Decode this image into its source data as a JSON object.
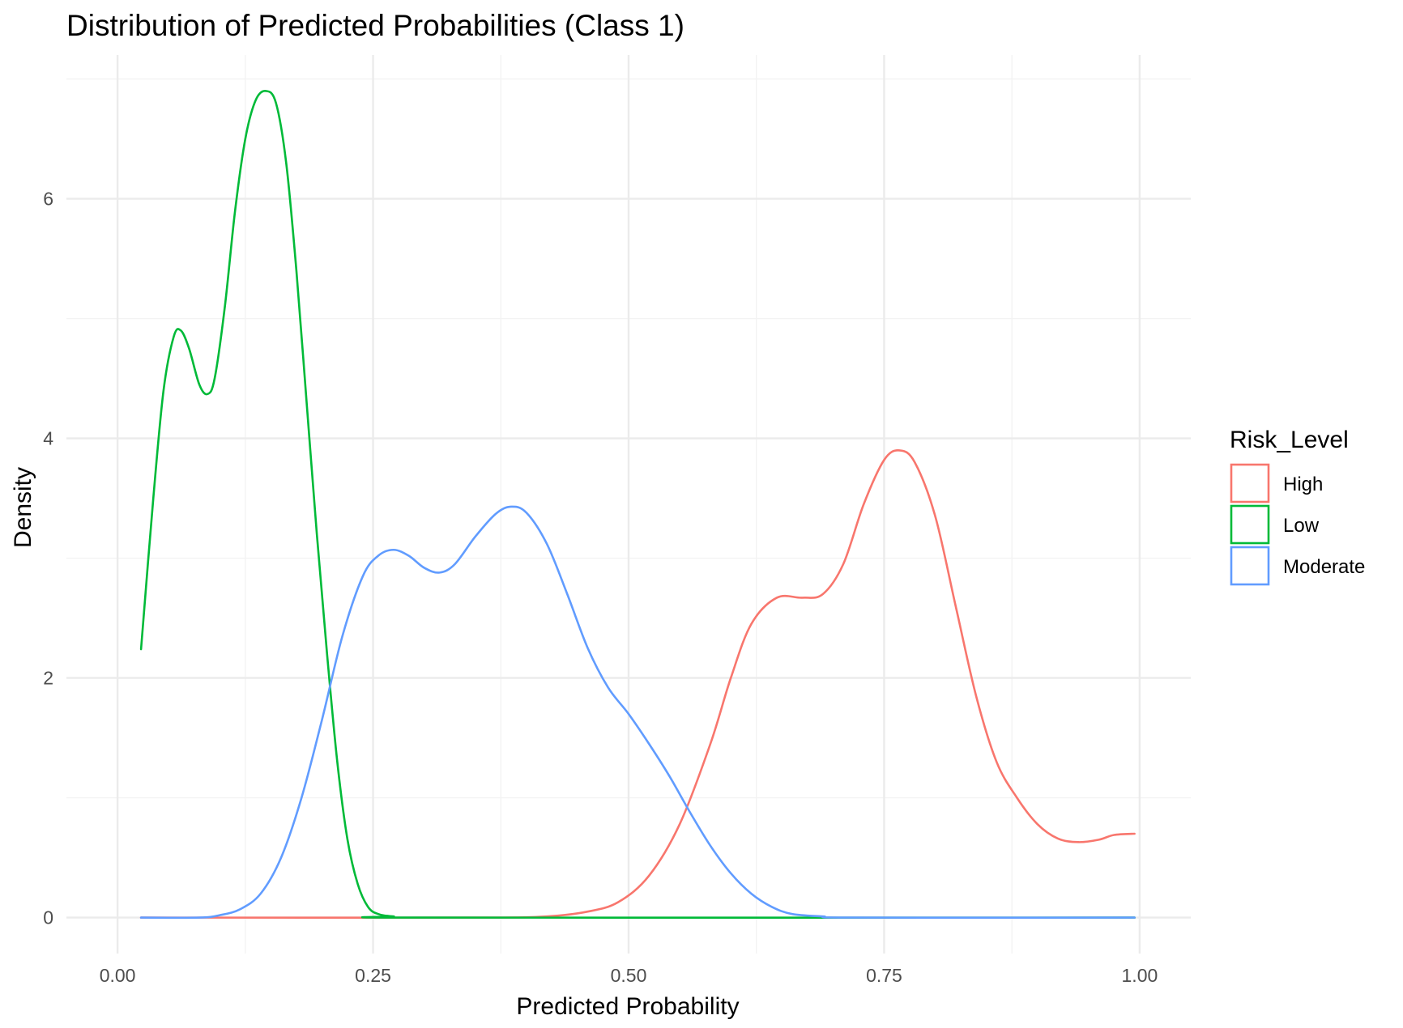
{
  "chart_data": {
    "type": "line",
    "subtype": "density",
    "title": "Distribution of Predicted Probabilities (Class 1)",
    "xlabel": "Predicted Probability",
    "ylabel": "Density",
    "xlim": [
      -0.05,
      1.05
    ],
    "ylim": [
      -0.3,
      7.2
    ],
    "x_ticks": [
      0,
      0.25,
      0.5,
      0.75,
      1.0
    ],
    "x_tick_labels": [
      "0.00",
      "0.25",
      "0.50",
      "0.75",
      "1.00"
    ],
    "y_ticks": [
      0,
      2,
      4,
      6
    ],
    "y_tick_labels": [
      "0",
      "2",
      "4",
      "6"
    ],
    "grid": true,
    "legend": {
      "title": "Risk_Level",
      "position": "right"
    },
    "series": [
      {
        "name": "High",
        "color": "#F8766D",
        "points": [
          [
            0.023,
            0.0
          ],
          [
            0.35,
            0.0
          ],
          [
            0.42,
            0.01
          ],
          [
            0.46,
            0.05
          ],
          [
            0.49,
            0.13
          ],
          [
            0.52,
            0.35
          ],
          [
            0.55,
            0.78
          ],
          [
            0.58,
            1.45
          ],
          [
            0.6,
            2.0
          ],
          [
            0.62,
            2.45
          ],
          [
            0.645,
            2.67
          ],
          [
            0.67,
            2.67
          ],
          [
            0.69,
            2.7
          ],
          [
            0.71,
            2.95
          ],
          [
            0.73,
            3.45
          ],
          [
            0.75,
            3.82
          ],
          [
            0.765,
            3.9
          ],
          [
            0.78,
            3.8
          ],
          [
            0.8,
            3.35
          ],
          [
            0.82,
            2.6
          ],
          [
            0.84,
            1.85
          ],
          [
            0.86,
            1.3
          ],
          [
            0.88,
            1.0
          ],
          [
            0.9,
            0.78
          ],
          [
            0.92,
            0.66
          ],
          [
            0.94,
            0.63
          ],
          [
            0.96,
            0.65
          ],
          [
            0.975,
            0.69
          ],
          [
            0.995,
            0.7
          ]
        ]
      },
      {
        "name": "Low",
        "color": "#00BA38",
        "points": [
          [
            0.023,
            2.24
          ],
          [
            0.035,
            3.5
          ],
          [
            0.045,
            4.4
          ],
          [
            0.055,
            4.85
          ],
          [
            0.062,
            4.9
          ],
          [
            0.07,
            4.75
          ],
          [
            0.08,
            4.45
          ],
          [
            0.088,
            4.37
          ],
          [
            0.095,
            4.5
          ],
          [
            0.105,
            5.1
          ],
          [
            0.115,
            5.9
          ],
          [
            0.125,
            6.5
          ],
          [
            0.135,
            6.82
          ],
          [
            0.145,
            6.9
          ],
          [
            0.155,
            6.8
          ],
          [
            0.165,
            6.3
          ],
          [
            0.175,
            5.4
          ],
          [
            0.185,
            4.3
          ],
          [
            0.195,
            3.2
          ],
          [
            0.205,
            2.2
          ],
          [
            0.215,
            1.3
          ],
          [
            0.225,
            0.65
          ],
          [
            0.235,
            0.28
          ],
          [
            0.245,
            0.09
          ],
          [
            0.255,
            0.03
          ],
          [
            0.27,
            0.01
          ],
          [
            0.3,
            0.0
          ],
          [
            0.995,
            0.0
          ]
        ]
      },
      {
        "name": "Moderate",
        "color": "#619CFF",
        "points": [
          [
            0.023,
            0.0
          ],
          [
            0.08,
            0.0
          ],
          [
            0.1,
            0.02
          ],
          [
            0.12,
            0.07
          ],
          [
            0.14,
            0.2
          ],
          [
            0.16,
            0.5
          ],
          [
            0.18,
            1.0
          ],
          [
            0.2,
            1.65
          ],
          [
            0.22,
            2.35
          ],
          [
            0.24,
            2.85
          ],
          [
            0.255,
            3.02
          ],
          [
            0.27,
            3.07
          ],
          [
            0.285,
            3.02
          ],
          [
            0.3,
            2.92
          ],
          [
            0.315,
            2.88
          ],
          [
            0.33,
            2.95
          ],
          [
            0.35,
            3.18
          ],
          [
            0.37,
            3.37
          ],
          [
            0.385,
            3.43
          ],
          [
            0.4,
            3.38
          ],
          [
            0.42,
            3.12
          ],
          [
            0.44,
            2.7
          ],
          [
            0.46,
            2.25
          ],
          [
            0.48,
            1.92
          ],
          [
            0.5,
            1.7
          ],
          [
            0.52,
            1.45
          ],
          [
            0.54,
            1.18
          ],
          [
            0.56,
            0.88
          ],
          [
            0.58,
            0.6
          ],
          [
            0.6,
            0.37
          ],
          [
            0.62,
            0.2
          ],
          [
            0.64,
            0.09
          ],
          [
            0.66,
            0.03
          ],
          [
            0.69,
            0.01
          ],
          [
            0.72,
            0.0
          ],
          [
            0.995,
            0.0
          ]
        ]
      }
    ]
  }
}
